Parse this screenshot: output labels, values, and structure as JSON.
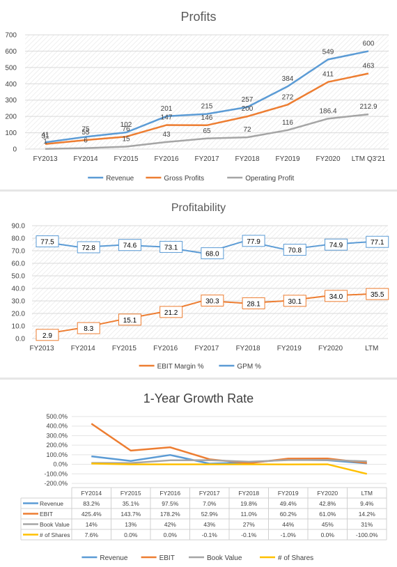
{
  "chart_data": [
    {
      "type": "line",
      "title": "Profits",
      "categories": [
        "FY2013",
        "FY2014",
        "FY2015",
        "FY2016",
        "FY2017",
        "FY2018",
        "FY2019",
        "FY2020",
        "LTM Q3'21"
      ],
      "yticks": [
        "0",
        "100",
        "200",
        "300",
        "400",
        "500",
        "600",
        "700"
      ],
      "ylim": [
        0,
        700
      ],
      "grid": true,
      "legend": "bottom",
      "series": [
        {
          "name": "Revenue",
          "color": "#5b9bd5",
          "values": [
            41,
            75,
            102,
            201,
            215,
            257,
            384,
            549,
            600
          ],
          "labels": [
            "41",
            "75",
            "102",
            "201",
            "215",
            "257",
            "384",
            "549",
            "600"
          ]
        },
        {
          "name": "Gross Profits",
          "color": "#ed7d31",
          "values": [
            31,
            55,
            76,
            147,
            146,
            200,
            272,
            411,
            463
          ],
          "labels": [
            "31",
            "55",
            "76",
            "147",
            "146",
            "200",
            "272",
            "411",
            "463"
          ]
        },
        {
          "name": "Operating Profit",
          "color": "#a5a5a5",
          "values": [
            1,
            6,
            15,
            43,
            65,
            72,
            116,
            186.4,
            212.9
          ],
          "labels": [
            "1",
            "6",
            "15",
            "43",
            "65",
            "72",
            "116",
            "186.4",
            "212.9"
          ]
        }
      ]
    },
    {
      "type": "line",
      "title": "Profitability",
      "categories": [
        "FY2013",
        "FY2014",
        "FY2015",
        "FY2016",
        "FY2017",
        "FY2018",
        "FY2019",
        "FY2020",
        "LTM"
      ],
      "yticks": [
        "0.0",
        "10.0",
        "20.0",
        "30.0",
        "40.0",
        "50.0",
        "60.0",
        "70.0",
        "80.0",
        "90.0"
      ],
      "ylim": [
        0,
        90
      ],
      "grid": true,
      "legend": "bottom",
      "series": [
        {
          "name": "EBIT Margin %",
          "color": "#ed7d31",
          "values": [
            2.9,
            8.3,
            15.1,
            21.2,
            30.3,
            28.1,
            30.1,
            34.0,
            35.5
          ],
          "labels": [
            "2.9",
            "8.3",
            "15.1",
            "21.2",
            "30.3",
            "28.1",
            "30.1",
            "34.0",
            "35.5"
          ]
        },
        {
          "name": "GPM %",
          "color": "#5b9bd5",
          "values": [
            77.5,
            72.8,
            74.6,
            73.1,
            68.0,
            77.9,
            70.8,
            74.9,
            77.1
          ],
          "labels": [
            "77.5",
            "72.8",
            "74.6",
            "73.1",
            "68.0",
            "77.9",
            "70.8",
            "74.9",
            "77.1"
          ]
        }
      ]
    },
    {
      "type": "line",
      "title": "1-Year Growth Rate",
      "categories": [
        "FY2014",
        "FY2015",
        "FY2016",
        "FY2017",
        "FY2018",
        "FY2019",
        "FY2020",
        "LTM"
      ],
      "yticks": [
        "-200.0%",
        "-100.0%",
        "0.0%",
        "100.0%",
        "200.0%",
        "300.0%",
        "400.0%",
        "500.0%"
      ],
      "ylim": [
        -200,
        500
      ],
      "grid": true,
      "legend": "bottom",
      "data_table": true,
      "series": [
        {
          "name": "Revenue",
          "color": "#5b9bd5",
          "values": [
            83.2,
            35.1,
            97.5,
            7.0,
            19.8,
            49.4,
            42.8,
            9.4
          ],
          "labels": [
            "83.2%",
            "35.1%",
            "97.5%",
            "7.0%",
            "19.8%",
            "49.4%",
            "42.8%",
            "9.4%"
          ]
        },
        {
          "name": "EBIT",
          "color": "#ed7d31",
          "values": [
            425.4,
            143.7,
            178.2,
            52.9,
            11.0,
            60.2,
            61.0,
            14.2
          ],
          "labels": [
            "425.4%",
            "143.7%",
            "178.2%",
            "52.9%",
            "11.0%",
            "60.2%",
            "61.0%",
            "14.2%"
          ]
        },
        {
          "name": "Book Value",
          "color": "#a5a5a5",
          "values": [
            14,
            13,
            42,
            43,
            27,
            44,
            45,
            31
          ],
          "labels": [
            "14%",
            "13%",
            "42%",
            "43%",
            "27%",
            "44%",
            "45%",
            "31%"
          ]
        },
        {
          "name": "# of Shares",
          "color": "#ffc000",
          "values": [
            7.6,
            0.0,
            0.0,
            -0.1,
            -0.1,
            -1.0,
            0.0,
            -100.0
          ],
          "labels": [
            "7.6%",
            "0.0%",
            "0.0%",
            "-0.1%",
            "-0.1%",
            "-1.0%",
            "0.0%",
            "-100.0%"
          ]
        }
      ]
    }
  ]
}
